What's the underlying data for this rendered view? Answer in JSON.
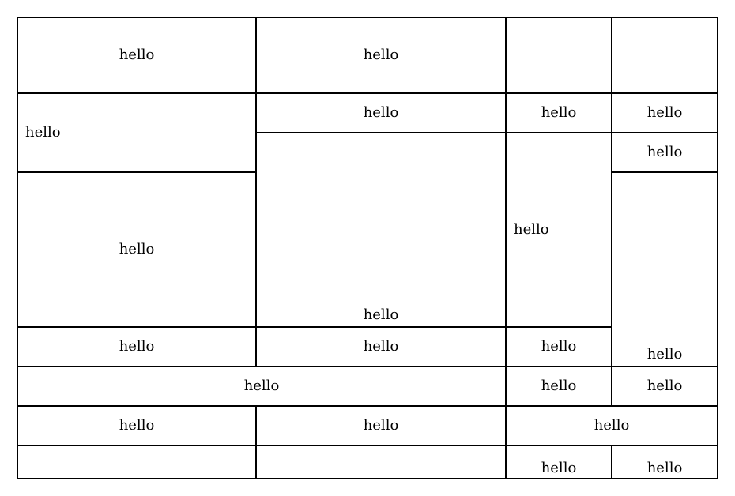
{
  "table": {
    "rows": [
      [
        "hello",
        "hello",
        "",
        ""
      ],
      [
        "hello",
        "hello",
        "hello",
        "hello"
      ],
      [
        "hello"
      ],
      [
        "hello",
        "hello",
        "hello"
      ],
      [
        "hello",
        "hello",
        "hello"
      ],
      [
        "hello",
        "hello",
        "hello"
      ],
      [
        "hello",
        "hello",
        "hello"
      ],
      [
        "",
        "",
        "hello",
        "hello"
      ]
    ]
  }
}
